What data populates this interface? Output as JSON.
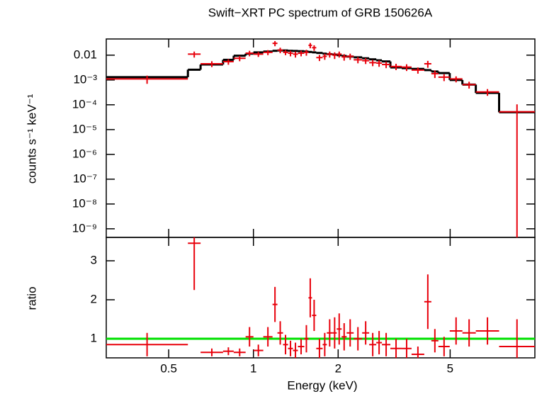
{
  "chart_data": [
    {
      "type": "spectrum",
      "title": "Swift−XRT PC spectrum of GRB 150626A",
      "ylabel": "counts s⁻¹ keV⁻¹",
      "log_y": true,
      "ylim": [
        4.5e-10,
        0.045
      ],
      "yticks": [
        0.01,
        {
          "value": 0.001,
          "label": "10⁻³"
        },
        {
          "value": 0.0001,
          "label": "10⁻⁴"
        },
        {
          "value": 1e-05,
          "label": "10⁻⁵"
        },
        {
          "value": 1e-06,
          "label": "10⁻⁶"
        },
        {
          "value": 1e-07,
          "label": "10⁻⁷"
        },
        {
          "value": 1e-08,
          "label": "10⁻⁸"
        },
        {
          "value": 1e-09,
          "label": "10⁻⁹"
        }
      ],
      "x_edges": [
        0.3,
        0.585,
        0.649,
        0.78,
        0.851,
        0.938,
        1.0,
        1.084,
        1.169,
        1.217,
        1.274,
        1.327,
        1.382,
        1.439,
        1.516,
        1.569,
        1.615,
        1.672,
        1.762,
        1.823,
        1.91,
        1.977,
        2.058,
        2.144,
        2.271,
        2.434,
        2.578,
        2.732,
        2.861,
        3.066,
        3.364,
        3.646,
        4.046,
        4.287,
        4.542,
        4.983,
        5.527,
        6.168,
        7.463,
        10.0
      ],
      "data_color": "#e8000b",
      "model_color": "#000000",
      "rate": [
        0.0011,
        0.011,
        0.0045,
        0.0055,
        0.0075,
        0.012,
        0.011,
        0.013,
        0.03,
        0.016,
        0.013,
        0.012,
        0.011,
        0.012,
        0.013,
        0.025,
        0.02,
        0.008,
        0.009,
        0.011,
        0.01,
        0.011,
        0.0085,
        0.009,
        0.0065,
        0.006,
        0.005,
        0.0048,
        0.0042,
        0.0035,
        0.0033,
        0.0025,
        0.0045,
        0.0018,
        0.0013,
        0.0011,
        0.00065,
        0.00033,
        5.2e-05
      ],
      "rate_err": [
        0.0004,
        0.003,
        0.0012,
        0.0014,
        0.0018,
        0.003,
        0.0025,
        0.003,
        0.007,
        0.004,
        0.003,
        0.003,
        0.003,
        0.003,
        0.0035,
        0.006,
        0.005,
        0.0022,
        0.0025,
        0.003,
        0.003,
        0.003,
        0.0025,
        0.0025,
        0.0018,
        0.0016,
        0.0014,
        0.0014,
        0.0012,
        0.001,
        0.001,
        0.0007,
        0.0014,
        0.0006,
        0.0004,
        0.0003,
        0.0002,
        0.0001,
        5.2e-05
      ],
      "model": [
        0.0013,
        0.0026,
        0.0042,
        0.0065,
        0.0095,
        0.0115,
        0.013,
        0.014,
        0.015,
        0.0155,
        0.0155,
        0.015,
        0.0148,
        0.0145,
        0.014,
        0.0135,
        0.013,
        0.0123,
        0.0115,
        0.011,
        0.0105,
        0.01,
        0.0093,
        0.0088,
        0.0082,
        0.0075,
        0.0068,
        0.0062,
        0.0056,
        0.0032,
        0.003,
        0.0028,
        0.0025,
        0.0022,
        0.0019,
        0.001,
        0.00065,
        0.0003,
        5e-05
      ]
    },
    {
      "type": "ratio",
      "xlabel": "Energy (keV)",
      "ylabel": "ratio",
      "log_x": true,
      "xlim": [
        0.3,
        10
      ],
      "xticks": [
        0.5,
        1,
        2,
        5
      ],
      "ylim": [
        0.51,
        3.6
      ],
      "yticks": [
        1,
        2,
        3
      ],
      "reference": 1,
      "reference_color": "#00e000",
      "ratio": [
        0.85,
        3.45,
        0.65,
        0.68,
        0.65,
        1.05,
        0.7,
        1.05,
        1.88,
        1.15,
        0.85,
        0.75,
        0.7,
        0.8,
        1.0,
        2.05,
        1.6,
        0.75,
        0.85,
        1.15,
        1.15,
        1.25,
        1.05,
        1.15,
        1.0,
        1.15,
        0.85,
        0.9,
        0.85,
        0.75,
        0.75,
        0.6,
        1.95,
        0.95,
        0.8,
        1.2,
        1.15,
        1.2,
        0.8
      ],
      "ratio_err": [
        0.3,
        1.2,
        0.1,
        0.1,
        0.1,
        0.25,
        0.15,
        0.25,
        0.45,
        0.3,
        0.25,
        0.2,
        0.2,
        0.2,
        0.35,
        0.5,
        0.4,
        0.25,
        0.3,
        0.35,
        0.4,
        0.4,
        0.35,
        0.35,
        0.3,
        0.3,
        0.3,
        0.3,
        0.3,
        0.25,
        0.25,
        0.2,
        0.7,
        0.3,
        0.25,
        0.35,
        0.35,
        0.35,
        0.7
      ]
    }
  ]
}
